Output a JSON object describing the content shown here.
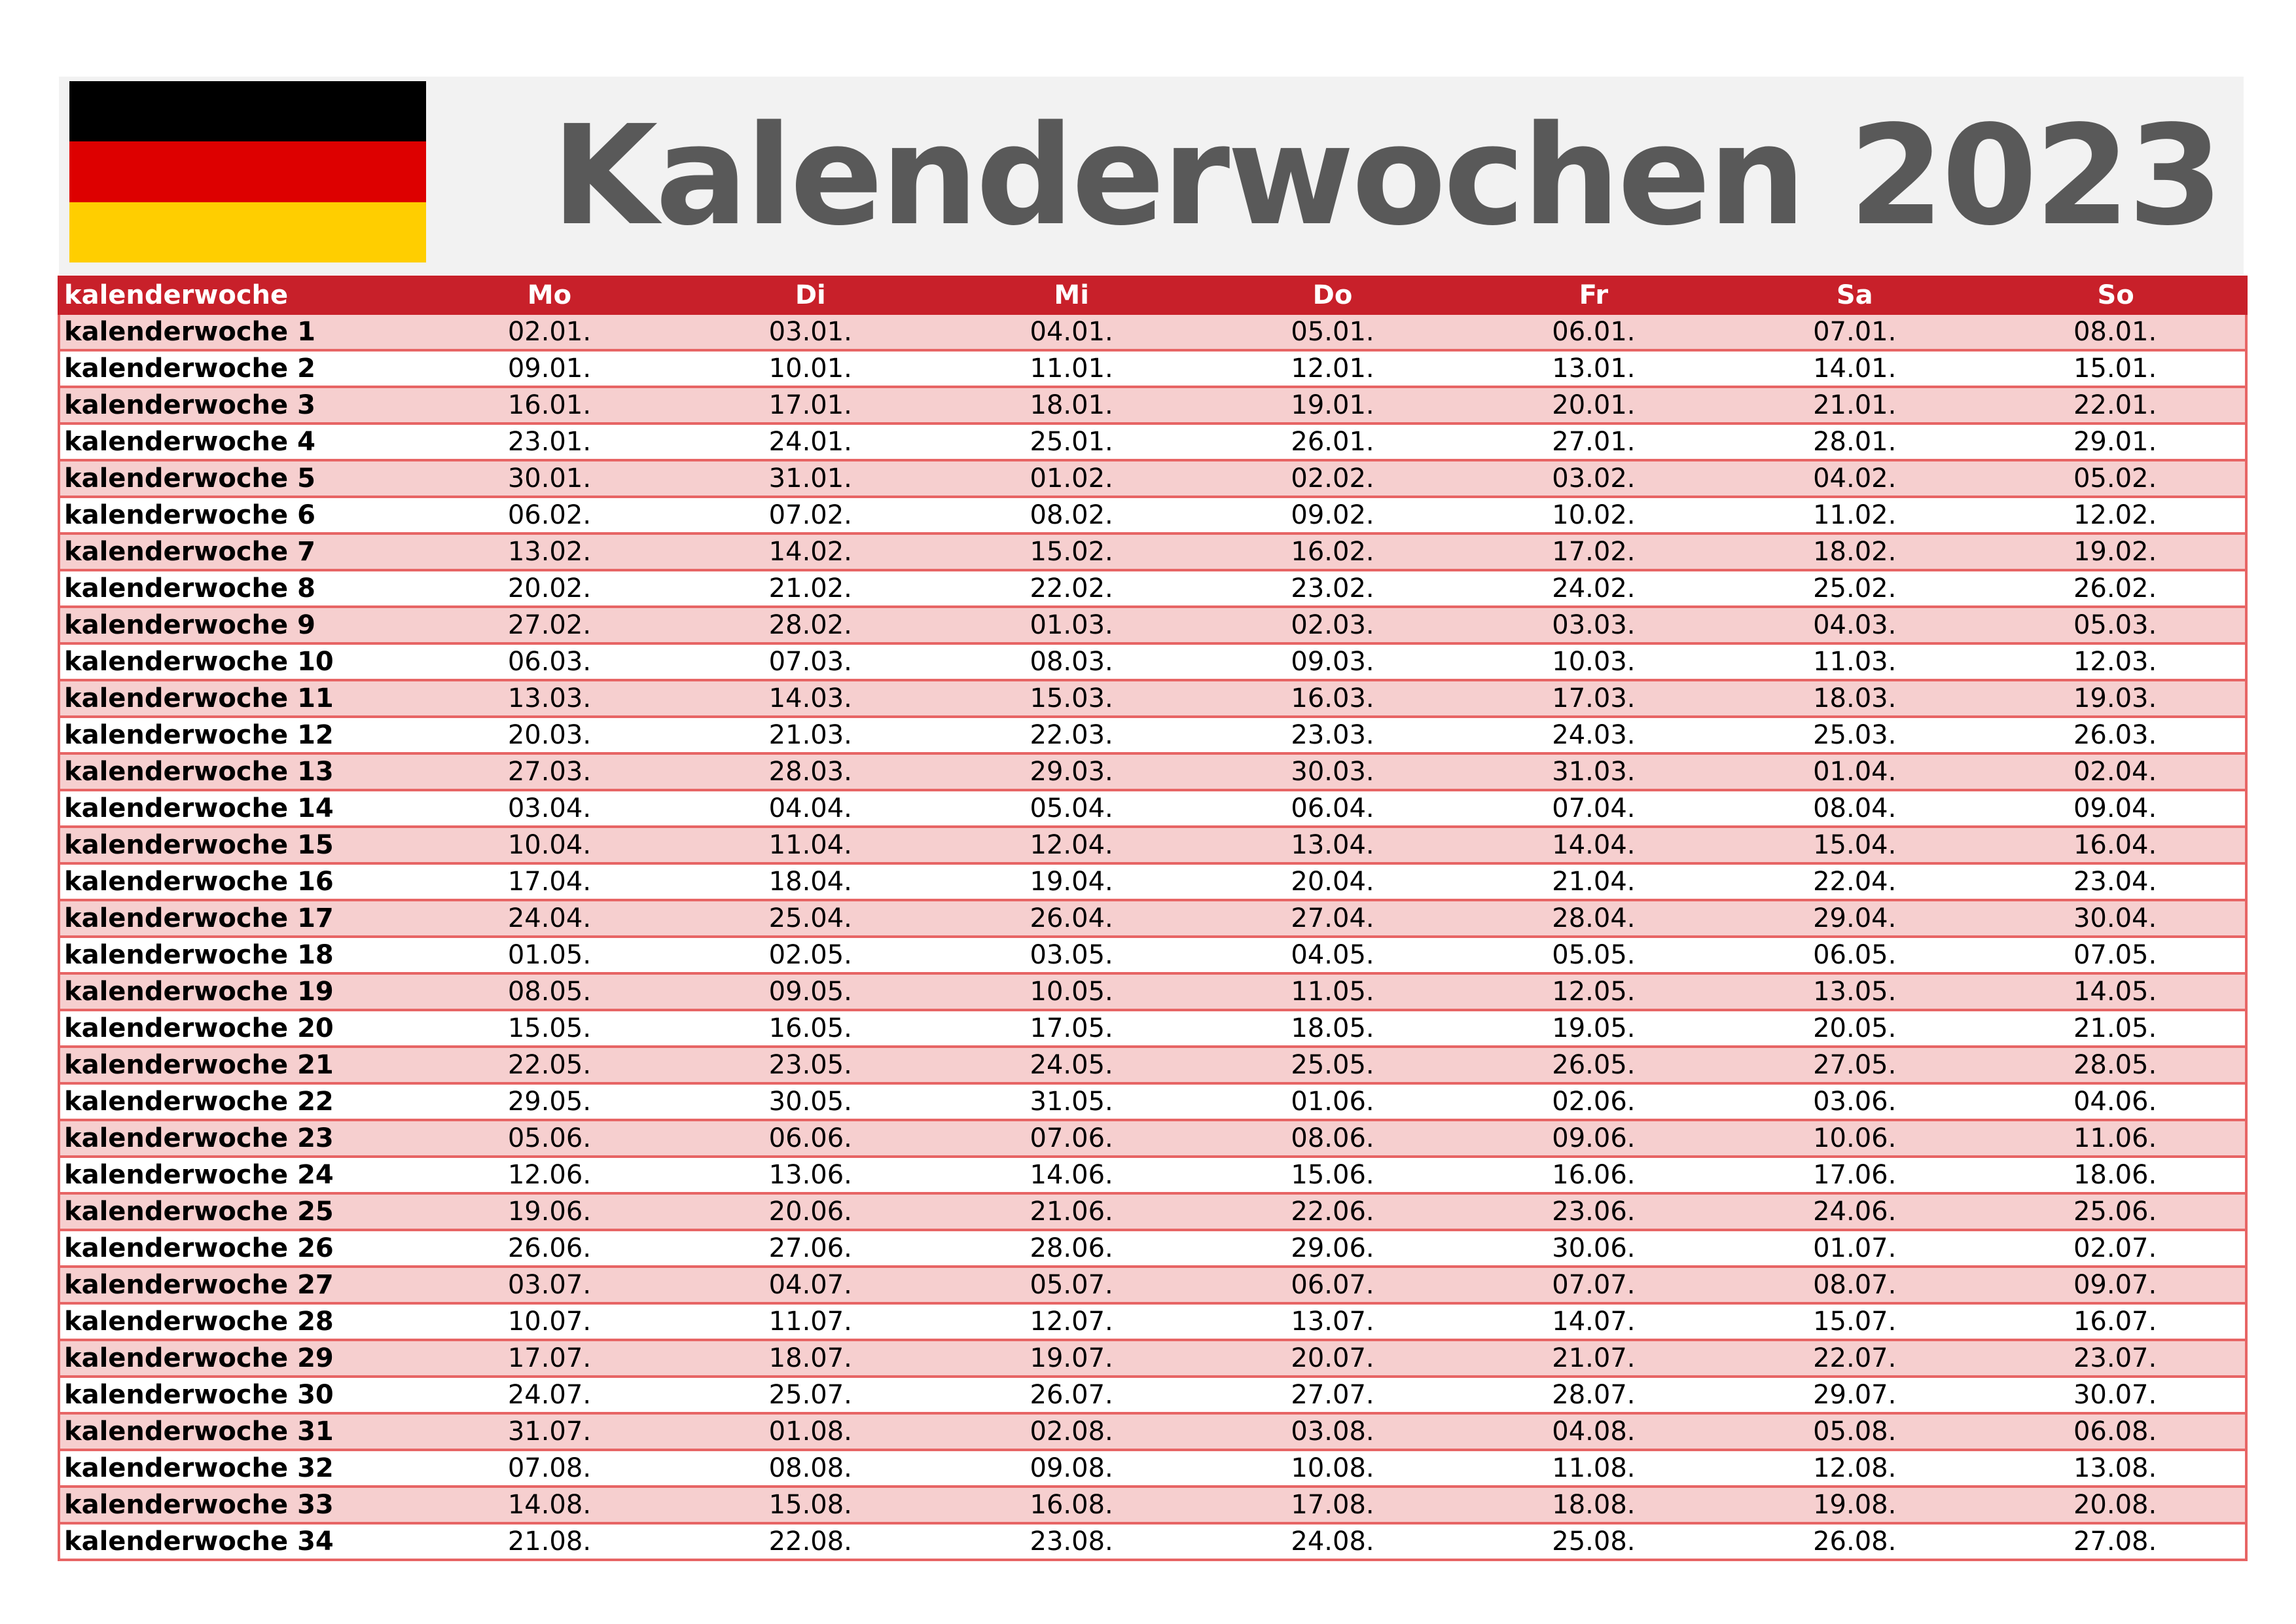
{
  "title": "Kalenderwochen 2023",
  "flag": {
    "colors": [
      "#000000",
      "#dd0000",
      "#ffce00"
    ]
  },
  "table": {
    "headers": [
      "kalenderwoche",
      "Mo",
      "Di",
      "Mi",
      "Do",
      "Fr",
      "Sa",
      "So"
    ],
    "rows": [
      {
        "week": "kalenderwoche 1",
        "days": [
          "02.01.",
          "03.01.",
          "04.01.",
          "05.01.",
          "06.01.",
          "07.01.",
          "08.01."
        ]
      },
      {
        "week": "kalenderwoche 2",
        "days": [
          "09.01.",
          "10.01.",
          "11.01.",
          "12.01.",
          "13.01.",
          "14.01.",
          "15.01."
        ]
      },
      {
        "week": "kalenderwoche 3",
        "days": [
          "16.01.",
          "17.01.",
          "18.01.",
          "19.01.",
          "20.01.",
          "21.01.",
          "22.01."
        ]
      },
      {
        "week": "kalenderwoche 4",
        "days": [
          "23.01.",
          "24.01.",
          "25.01.",
          "26.01.",
          "27.01.",
          "28.01.",
          "29.01."
        ]
      },
      {
        "week": "kalenderwoche 5",
        "days": [
          "30.01.",
          "31.01.",
          "01.02.",
          "02.02.",
          "03.02.",
          "04.02.",
          "05.02."
        ]
      },
      {
        "week": "kalenderwoche 6",
        "days": [
          "06.02.",
          "07.02.",
          "08.02.",
          "09.02.",
          "10.02.",
          "11.02.",
          "12.02."
        ]
      },
      {
        "week": "kalenderwoche 7",
        "days": [
          "13.02.",
          "14.02.",
          "15.02.",
          "16.02.",
          "17.02.",
          "18.02.",
          "19.02."
        ]
      },
      {
        "week": "kalenderwoche 8",
        "days": [
          "20.02.",
          "21.02.",
          "22.02.",
          "23.02.",
          "24.02.",
          "25.02.",
          "26.02."
        ]
      },
      {
        "week": "kalenderwoche 9",
        "days": [
          "27.02.",
          "28.02.",
          "01.03.",
          "02.03.",
          "03.03.",
          "04.03.",
          "05.03."
        ]
      },
      {
        "week": "kalenderwoche 10",
        "days": [
          "06.03.",
          "07.03.",
          "08.03.",
          "09.03.",
          "10.03.",
          "11.03.",
          "12.03."
        ]
      },
      {
        "week": "kalenderwoche 11",
        "days": [
          "13.03.",
          "14.03.",
          "15.03.",
          "16.03.",
          "17.03.",
          "18.03.",
          "19.03."
        ]
      },
      {
        "week": "kalenderwoche 12",
        "days": [
          "20.03.",
          "21.03.",
          "22.03.",
          "23.03.",
          "24.03.",
          "25.03.",
          "26.03."
        ]
      },
      {
        "week": "kalenderwoche 13",
        "days": [
          "27.03.",
          "28.03.",
          "29.03.",
          "30.03.",
          "31.03.",
          "01.04.",
          "02.04."
        ]
      },
      {
        "week": "kalenderwoche 14",
        "days": [
          "03.04.",
          "04.04.",
          "05.04.",
          "06.04.",
          "07.04.",
          "08.04.",
          "09.04."
        ]
      },
      {
        "week": "kalenderwoche 15",
        "days": [
          "10.04.",
          "11.04.",
          "12.04.",
          "13.04.",
          "14.04.",
          "15.04.",
          "16.04."
        ]
      },
      {
        "week": "kalenderwoche 16",
        "days": [
          "17.04.",
          "18.04.",
          "19.04.",
          "20.04.",
          "21.04.",
          "22.04.",
          "23.04."
        ]
      },
      {
        "week": "kalenderwoche 17",
        "days": [
          "24.04.",
          "25.04.",
          "26.04.",
          "27.04.",
          "28.04.",
          "29.04.",
          "30.04."
        ]
      },
      {
        "week": "kalenderwoche 18",
        "days": [
          "01.05.",
          "02.05.",
          "03.05.",
          "04.05.",
          "05.05.",
          "06.05.",
          "07.05."
        ]
      },
      {
        "week": "kalenderwoche 19",
        "days": [
          "08.05.",
          "09.05.",
          "10.05.",
          "11.05.",
          "12.05.",
          "13.05.",
          "14.05."
        ]
      },
      {
        "week": "kalenderwoche 20",
        "days": [
          "15.05.",
          "16.05.",
          "17.05.",
          "18.05.",
          "19.05.",
          "20.05.",
          "21.05."
        ]
      },
      {
        "week": "kalenderwoche 21",
        "days": [
          "22.05.",
          "23.05.",
          "24.05.",
          "25.05.",
          "26.05.",
          "27.05.",
          "28.05."
        ]
      },
      {
        "week": "kalenderwoche 22",
        "days": [
          "29.05.",
          "30.05.",
          "31.05.",
          "01.06.",
          "02.06.",
          "03.06.",
          "04.06."
        ]
      },
      {
        "week": "kalenderwoche 23",
        "days": [
          "05.06.",
          "06.06.",
          "07.06.",
          "08.06.",
          "09.06.",
          "10.06.",
          "11.06."
        ]
      },
      {
        "week": "kalenderwoche 24",
        "days": [
          "12.06.",
          "13.06.",
          "14.06.",
          "15.06.",
          "16.06.",
          "17.06.",
          "18.06."
        ]
      },
      {
        "week": "kalenderwoche 25",
        "days": [
          "19.06.",
          "20.06.",
          "21.06.",
          "22.06.",
          "23.06.",
          "24.06.",
          "25.06."
        ]
      },
      {
        "week": "kalenderwoche 26",
        "days": [
          "26.06.",
          "27.06.",
          "28.06.",
          "29.06.",
          "30.06.",
          "01.07.",
          "02.07."
        ]
      },
      {
        "week": "kalenderwoche 27",
        "days": [
          "03.07.",
          "04.07.",
          "05.07.",
          "06.07.",
          "07.07.",
          "08.07.",
          "09.07."
        ]
      },
      {
        "week": "kalenderwoche 28",
        "days": [
          "10.07.",
          "11.07.",
          "12.07.",
          "13.07.",
          "14.07.",
          "15.07.",
          "16.07."
        ]
      },
      {
        "week": "kalenderwoche 29",
        "days": [
          "17.07.",
          "18.07.",
          "19.07.",
          "20.07.",
          "21.07.",
          "22.07.",
          "23.07."
        ]
      },
      {
        "week": "kalenderwoche 30",
        "days": [
          "24.07.",
          "25.07.",
          "26.07.",
          "27.07.",
          "28.07.",
          "29.07.",
          "30.07."
        ]
      },
      {
        "week": "kalenderwoche 31",
        "days": [
          "31.07.",
          "01.08.",
          "02.08.",
          "03.08.",
          "04.08.",
          "05.08.",
          "06.08."
        ]
      },
      {
        "week": "kalenderwoche 32",
        "days": [
          "07.08.",
          "08.08.",
          "09.08.",
          "10.08.",
          "11.08.",
          "12.08.",
          "13.08."
        ]
      },
      {
        "week": "kalenderwoche 33",
        "days": [
          "14.08.",
          "15.08.",
          "16.08.",
          "17.08.",
          "18.08.",
          "19.08.",
          "20.08."
        ]
      },
      {
        "week": "kalenderwoche 34",
        "days": [
          "21.08.",
          "22.08.",
          "23.08.",
          "24.08.",
          "25.08.",
          "26.08.",
          "27.08."
        ]
      }
    ]
  }
}
